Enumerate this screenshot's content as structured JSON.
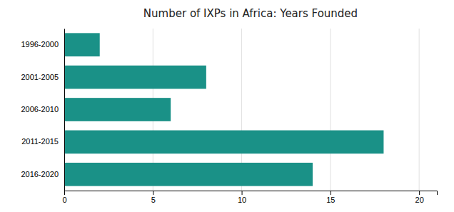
{
  "chart_data": {
    "type": "bar",
    "orientation": "horizontal",
    "title": "Number of IXPs in Africa: Years Founded",
    "categories": [
      "1996-2000",
      "2001-2005",
      "2006-2010",
      "2011-2015",
      "2016-2020"
    ],
    "values": [
      2,
      8,
      6,
      18,
      14
    ],
    "color": "#1a9187",
    "xlim": [
      0,
      21
    ],
    "xticks": [
      0,
      5,
      10,
      15,
      20
    ],
    "grid": true
  }
}
